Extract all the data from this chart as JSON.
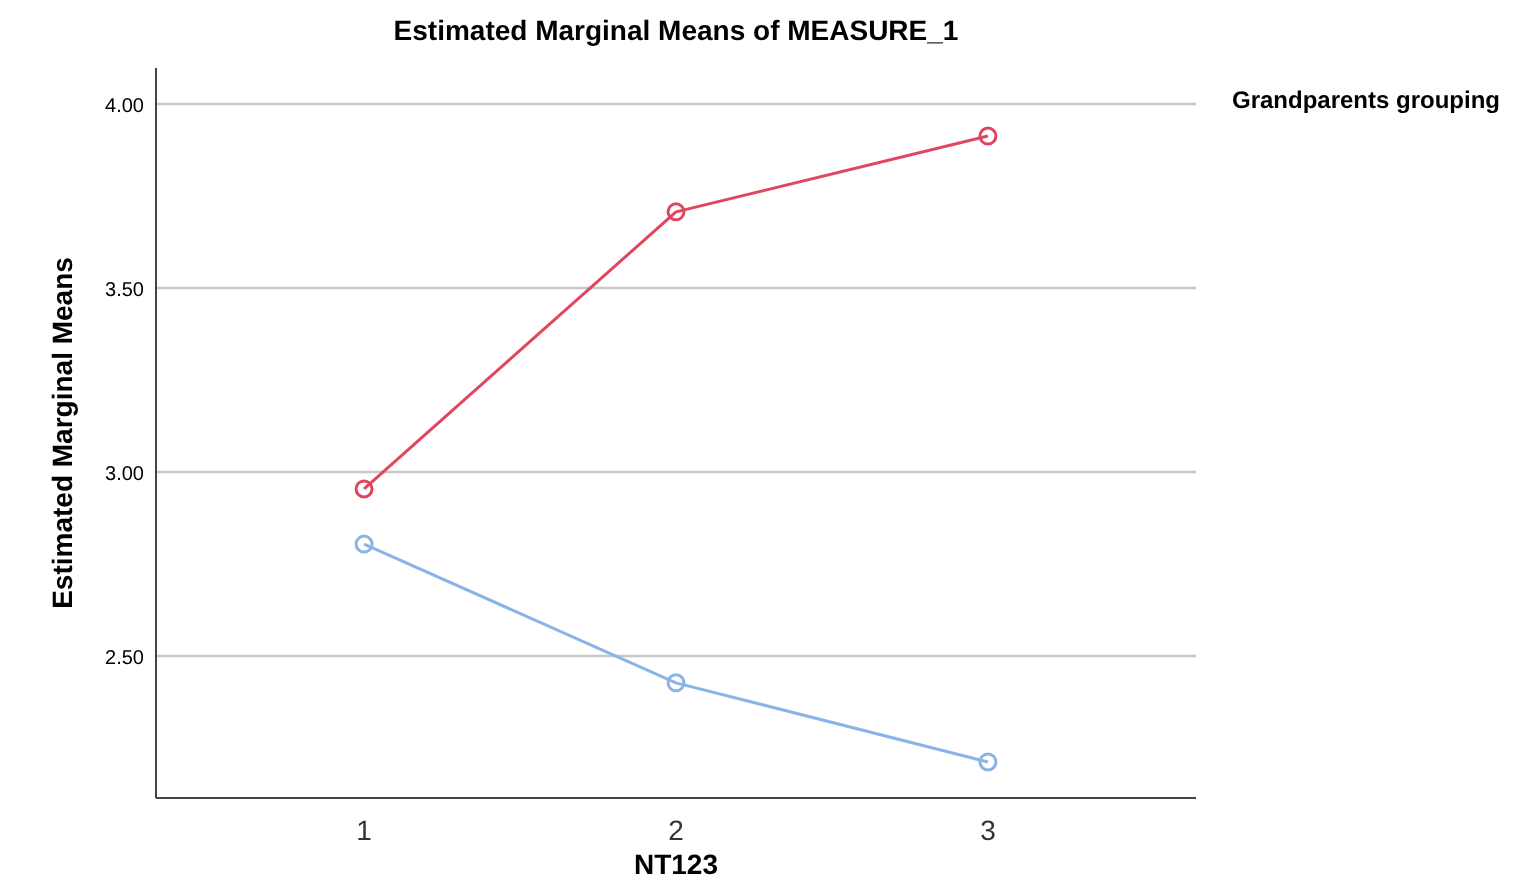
{
  "chart_data": {
    "type": "line",
    "title": "Estimated Marginal Means of MEASURE_1",
    "xlabel": "NT123",
    "ylabel": "Estimated Marginal Means",
    "legend_title": "Grandparents grouping",
    "categories": [
      "1",
      "2",
      "3"
    ],
    "series": [
      {
        "color": "#e0475f",
        "values": [
          2.954,
          3.707,
          3.913
        ]
      },
      {
        "color": "#8ab4e8",
        "values": [
          2.804,
          2.427,
          2.212
        ]
      }
    ],
    "ylim": [
      2.114,
      4.098
    ],
    "yticks": [
      {
        "value": 2.5,
        "label": "2.50"
      },
      {
        "value": 3,
        "label": "3.00"
      },
      {
        "value": 3.5,
        "label": "3.50"
      },
      {
        "value": 4,
        "label": "4.00"
      }
    ],
    "grid": "y",
    "marker": "circle",
    "line_style": "solid"
  }
}
